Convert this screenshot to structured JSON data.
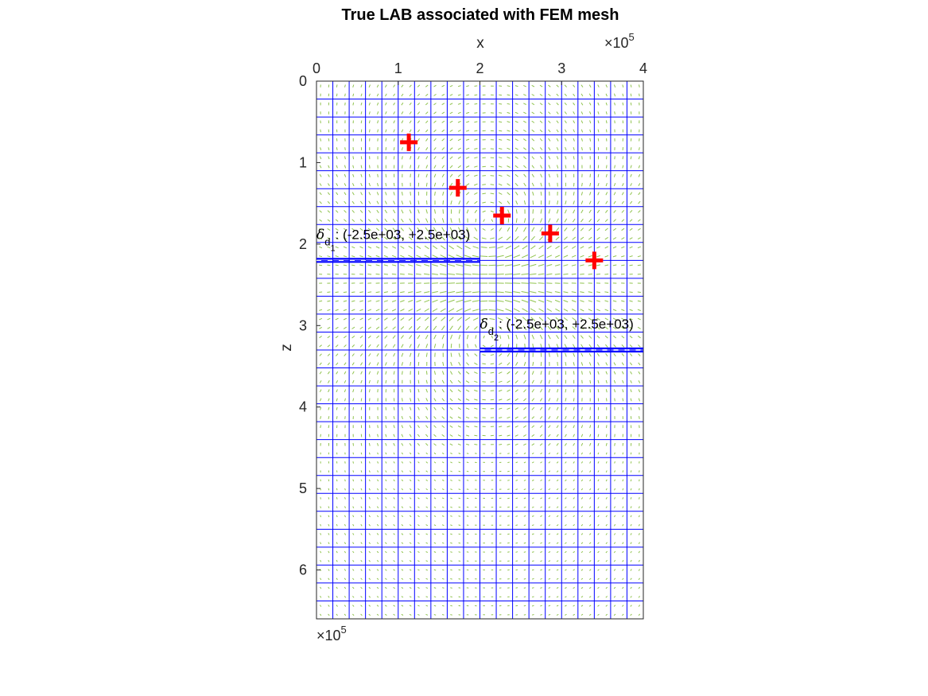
{
  "chart_data": {
    "type": "scatter",
    "title": "True LAB associated with FEM mesh",
    "xlabel": "x",
    "ylabel": "z",
    "x_exponent": "×10",
    "x_exponent_power": "5",
    "z_exponent": "×10",
    "z_exponent_power": "5",
    "xlim": [
      0,
      4
    ],
    "zlim": [
      0,
      6.6
    ],
    "x_ticks": [
      "0",
      "1",
      "2",
      "3",
      "4"
    ],
    "z_ticks": [
      "0",
      "1",
      "2",
      "3",
      "4",
      "5",
      "6"
    ],
    "x_axis_position": "top",
    "z_direction": "reversed",
    "mesh": {
      "dx": 0.2,
      "z_lines": [
        0,
        0.22,
        0.44,
        0.66,
        0.88,
        1.1,
        1.32,
        1.54,
        1.76,
        1.98,
        2.2,
        2.42,
        2.64,
        2.86,
        3.08,
        3.3,
        3.52,
        3.74,
        3.96,
        4.18,
        4.4,
        4.62,
        4.84,
        5.06,
        5.28,
        5.5,
        5.72,
        5.94,
        6.16,
        6.38,
        6.6
      ],
      "color": "#0000ff"
    },
    "faults": [
      {
        "x_start": 0,
        "x_end": 2.0,
        "z": 2.2,
        "symbol": "δ",
        "sub1": "d",
        "sub2": "1",
        "label": ": (-2.5e+03, +2.5e+03)"
      },
      {
        "x_start": 2.0,
        "x_end": 4.0,
        "z": 3.3,
        "symbol": "δ",
        "sub1": "d",
        "sub2": "2",
        "label": ": (-2.5e+03, +2.5e+03)"
      }
    ],
    "stations": {
      "marker": "+",
      "color": "#ff0000",
      "x": [
        1.13,
        1.73,
        2.27,
        2.86,
        3.4
      ],
      "z": [
        0.75,
        1.31,
        1.65,
        1.87,
        2.2
      ]
    },
    "vector_field": {
      "color": "#7cb82f",
      "note_color": "#4a5fd0"
    }
  }
}
